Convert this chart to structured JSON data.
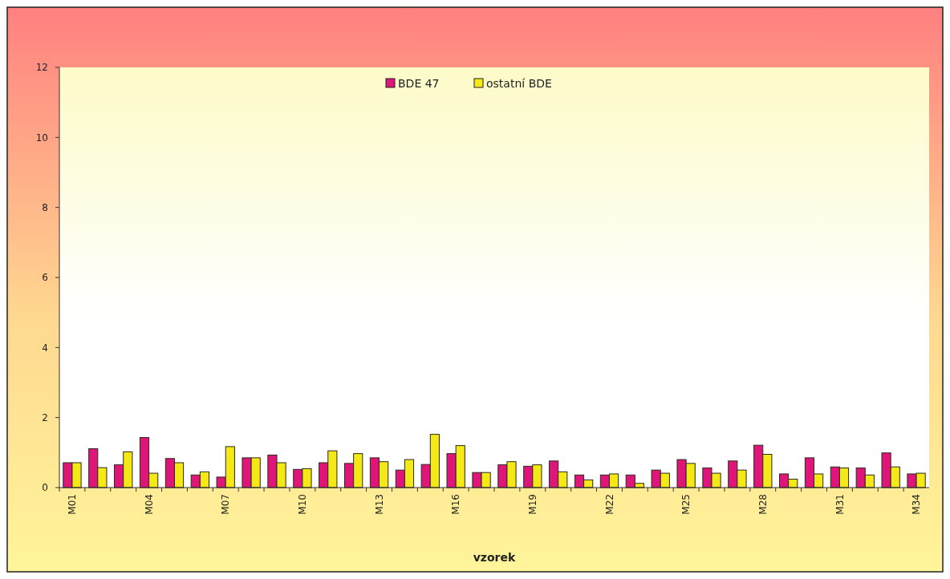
{
  "chart_data": {
    "type": "bar",
    "xlabel": "vzorek",
    "categories": [
      "M01",
      null,
      null,
      "M04",
      null,
      null,
      "M07",
      null,
      null,
      "M10",
      null,
      null,
      "M13",
      null,
      null,
      "M16",
      null,
      null,
      "M19",
      null,
      null,
      "M22",
      null,
      null,
      "M25",
      null,
      null,
      "M28",
      null,
      null,
      "M31",
      null,
      null,
      "M34"
    ],
    "series": [
      {
        "name": "BDE 47",
        "color": "#e0157a",
        "values": [
          0.71,
          1.11,
          0.65,
          1.43,
          0.83,
          0.36,
          0.3,
          0.85,
          0.93,
          0.52,
          0.71,
          0.69,
          0.85,
          0.5,
          0.66,
          0.97,
          0.43,
          0.65,
          0.61,
          0.76,
          0.36,
          0.36,
          0.36,
          0.5,
          0.8,
          0.56,
          0.76,
          1.21,
          0.39,
          0.85,
          0.59,
          0.56,
          0.99,
          0.39
        ]
      },
      {
        "name": "ostatní BDE",
        "color": "#f5e817",
        "values": [
          0.71,
          0.57,
          1.02,
          0.41,
          0.71,
          0.45,
          1.17,
          0.85,
          0.71,
          0.54,
          1.05,
          0.97,
          0.74,
          0.8,
          1.52,
          1.2,
          0.43,
          0.74,
          0.65,
          0.45,
          0.22,
          0.39,
          0.12,
          0.41,
          0.69,
          0.41,
          0.5,
          0.95,
          0.24,
          0.39,
          0.56,
          0.36,
          0.59,
          0.41
        ]
      }
    ],
    "ylim": [
      0,
      12
    ],
    "yticks": [
      0,
      2,
      4,
      6,
      8,
      10,
      12
    ],
    "legend": "top"
  }
}
